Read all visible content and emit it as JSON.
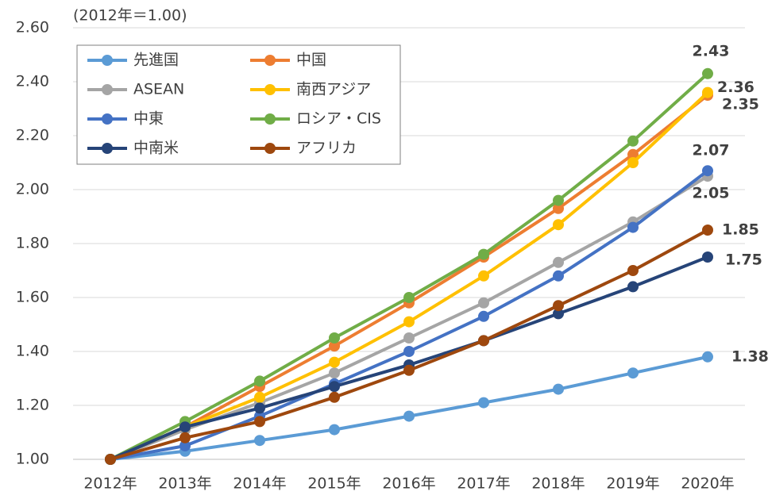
{
  "chart_data": {
    "type": "line",
    "annotation": "(2012年＝1.00)",
    "categories": [
      "2012年",
      "2013年",
      "2014年",
      "2015年",
      "2016年",
      "2017年",
      "2018年",
      "2019年",
      "2020年"
    ],
    "series": [
      {
        "name": "先進国",
        "color": "#5b9bd5",
        "values": [
          1.0,
          1.03,
          1.07,
          1.11,
          1.16,
          1.21,
          1.26,
          1.32,
          1.38
        ]
      },
      {
        "name": "中国",
        "color": "#ed7d31",
        "values": [
          1.0,
          1.12,
          1.27,
          1.42,
          1.58,
          1.75,
          1.93,
          2.13,
          2.35
        ]
      },
      {
        "name": "ASEAN",
        "color": "#a5a5a5",
        "values": [
          1.0,
          1.11,
          1.21,
          1.32,
          1.45,
          1.58,
          1.73,
          1.88,
          2.05
        ]
      },
      {
        "name": "南西アジア",
        "color": "#ffc000",
        "values": [
          1.0,
          1.12,
          1.23,
          1.36,
          1.51,
          1.68,
          1.87,
          2.1,
          2.36
        ]
      },
      {
        "name": "中東",
        "color": "#4472c4",
        "values": [
          1.0,
          1.05,
          1.16,
          1.28,
          1.4,
          1.53,
          1.68,
          1.86,
          2.07
        ]
      },
      {
        "name": "ロシア・CIS",
        "color": "#70ad47",
        "values": [
          1.0,
          1.14,
          1.29,
          1.45,
          1.6,
          1.76,
          1.96,
          2.18,
          2.43
        ]
      },
      {
        "name": "中南米",
        "color": "#264478",
        "values": [
          1.0,
          1.12,
          1.19,
          1.27,
          1.35,
          1.44,
          1.54,
          1.64,
          1.75
        ]
      },
      {
        "name": "アフリカ",
        "color": "#9e480e",
        "values": [
          1.0,
          1.08,
          1.14,
          1.23,
          1.33,
          1.44,
          1.57,
          1.7,
          1.85
        ]
      }
    ],
    "ylim": [
      1.0,
      2.6
    ],
    "yticks": [
      {
        "value": 1.0,
        "label": "1.00"
      },
      {
        "value": 1.2,
        "label": "1.20"
      },
      {
        "value": 1.4,
        "label": "1.40"
      },
      {
        "value": 1.6,
        "label": "1.60"
      },
      {
        "value": 1.8,
        "label": "1.80"
      },
      {
        "value": 2.0,
        "label": "2.00"
      },
      {
        "value": 2.2,
        "label": "2.20"
      },
      {
        "value": 2.4,
        "label": "2.40"
      },
      {
        "value": 2.6,
        "label": "2.60"
      }
    ],
    "grid": true,
    "legend": "top-left"
  }
}
